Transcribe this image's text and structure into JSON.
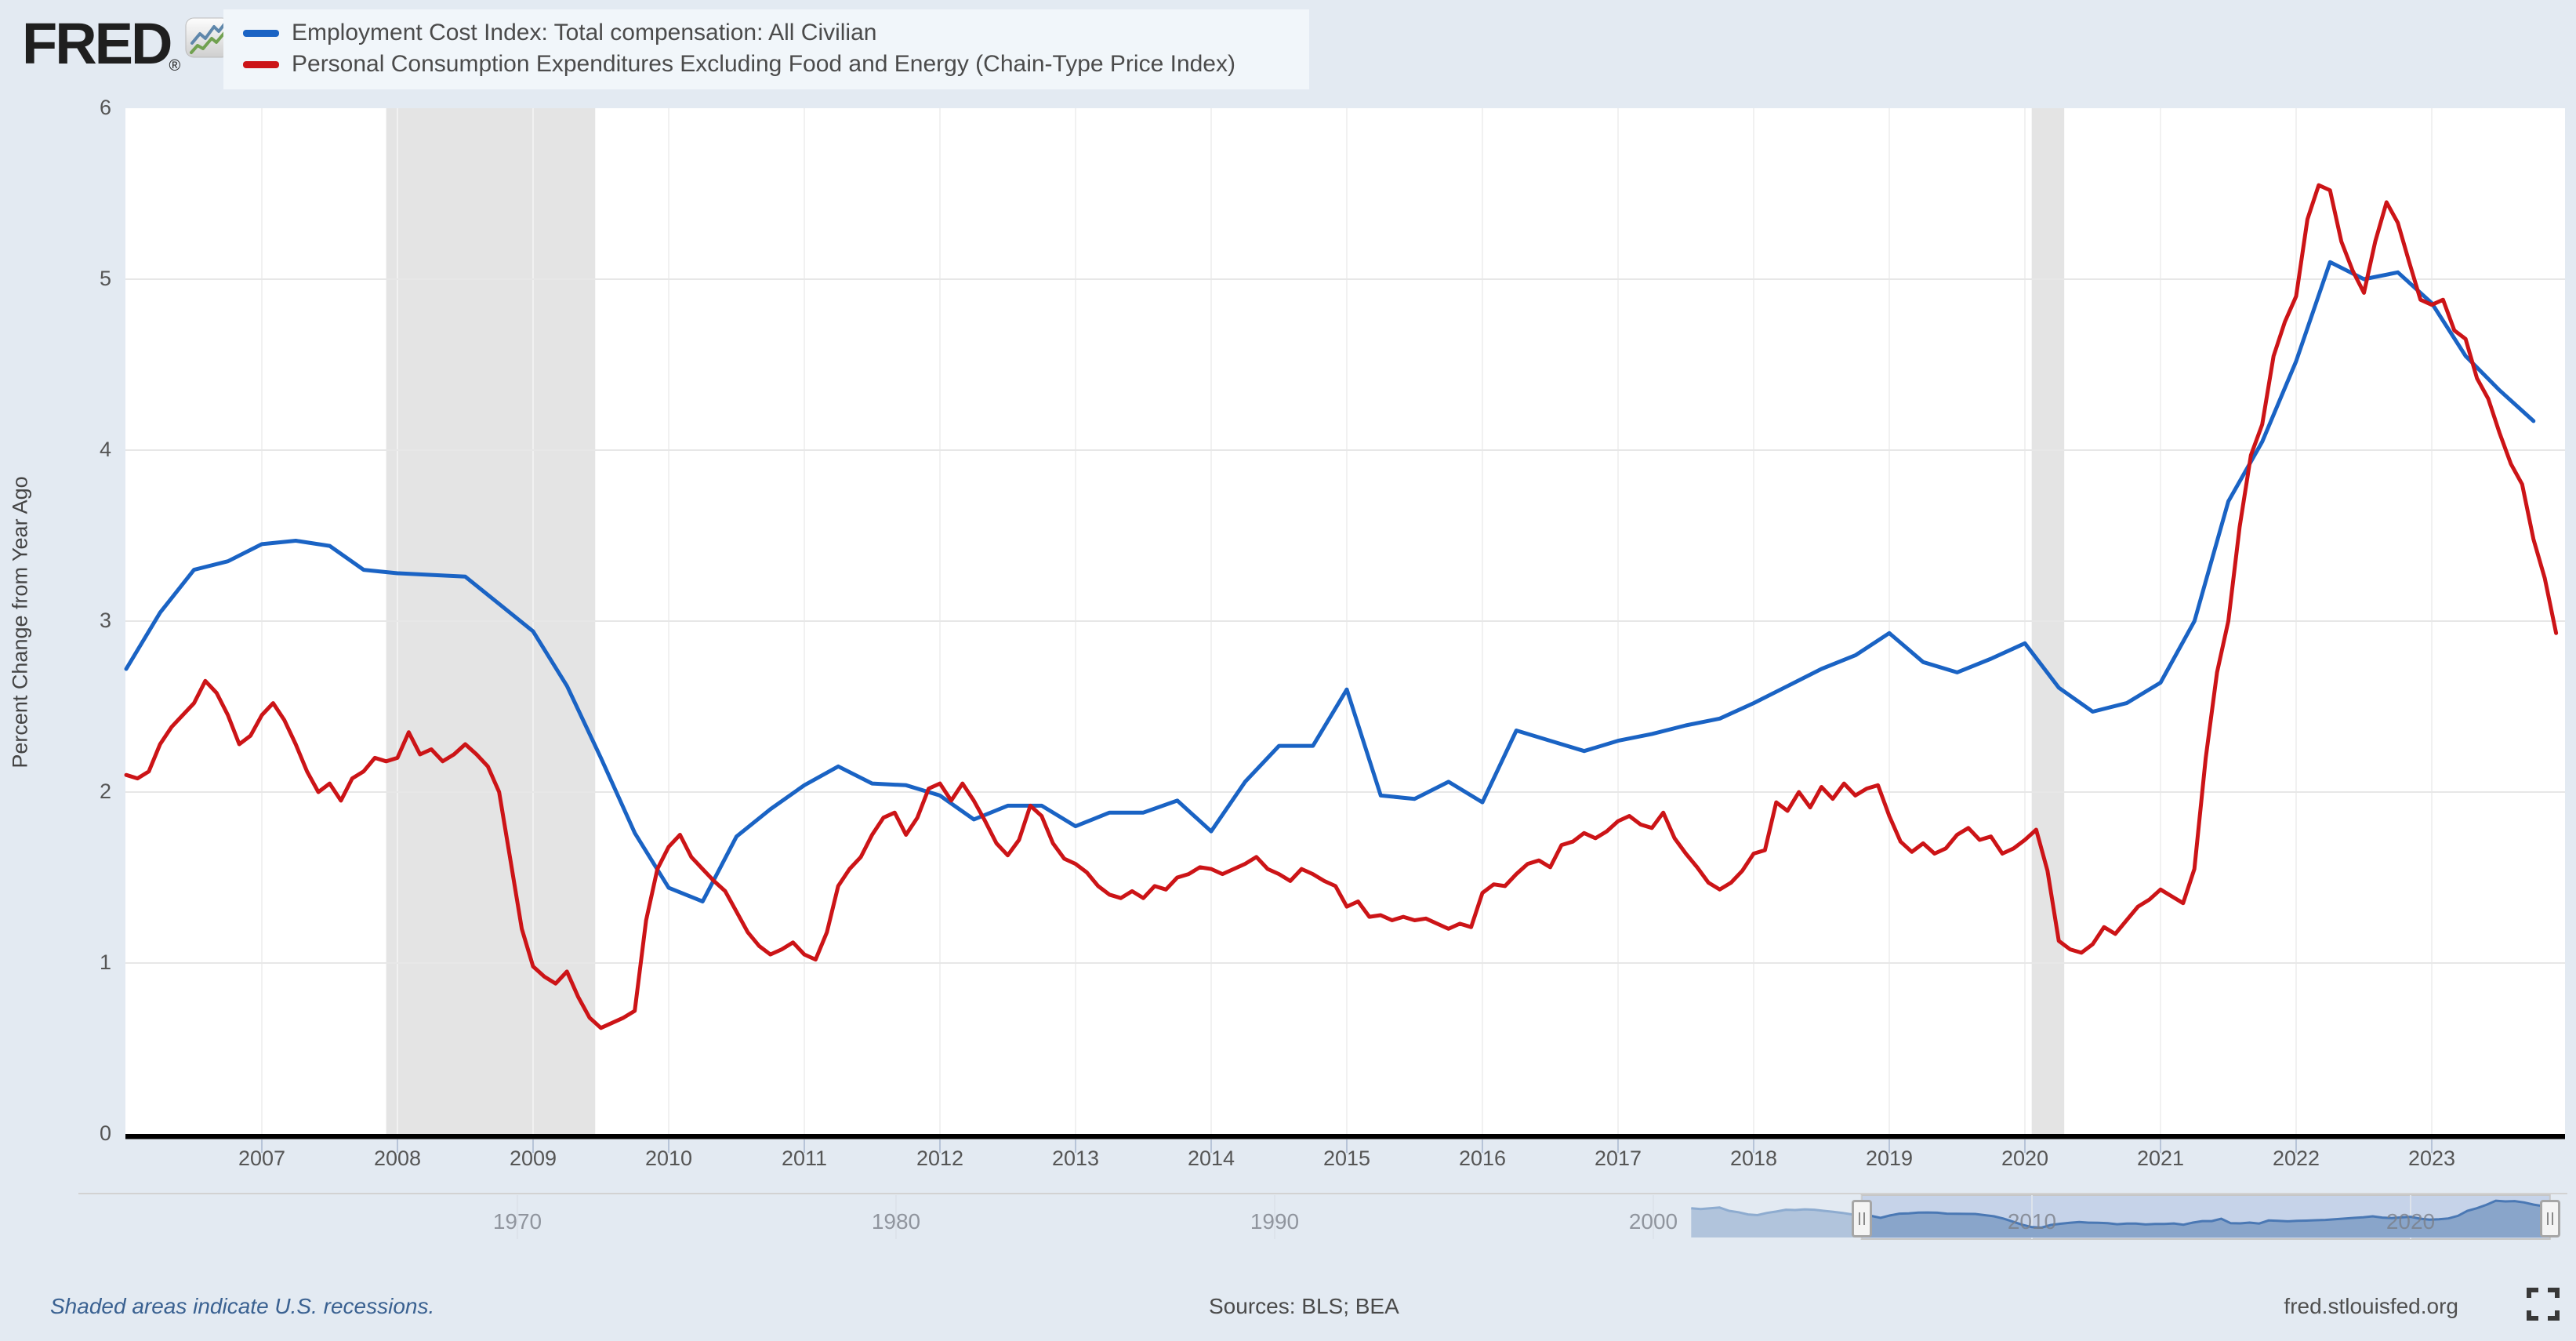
{
  "brand": {
    "logo_text": "FRED",
    "registered_mark": "®",
    "icon": "fred-zigzag-chart-icon"
  },
  "legend": {
    "series": [
      {
        "label": "Employment Cost Index: Total compensation: All Civilian",
        "color": "#1a63c4"
      },
      {
        "label": "Personal Consumption Expenditures Excluding Food and Energy (Chain-Type Price Index)",
        "color": "#cc1417"
      }
    ]
  },
  "footer": {
    "note": "Shaded areas indicate U.S. recessions.",
    "sources": "Sources: BLS; BEA",
    "site": "fred.stlouisfed.org",
    "expand_icon": "fullscreen-icon"
  },
  "colors": {
    "page_bg": "#e3eaf2",
    "plot_bg": "#ffffff",
    "gridline": "#e7e7e7",
    "year_gridline": "#f1f1f1",
    "recession_band": "#e4e4e4",
    "axis_line": "#000000",
    "tick_mark": "#b7c4d8",
    "minimap_fill": "#89a5ca",
    "minimap_stroke": "#4a78b4",
    "minimap_selection_bg": "#c6d3e9",
    "minimap_selection_border": "#c6c6c6"
  },
  "chart_data": {
    "type": "line",
    "title": "",
    "xlabel": "",
    "ylabel": "Percent Change from Year Ago",
    "ylim": [
      0,
      6
    ],
    "y_ticks": [
      "0",
      "1",
      "2",
      "3",
      "4",
      "5",
      "6"
    ],
    "x_ticks": [
      "2007",
      "2008",
      "2009",
      "2010",
      "2011",
      "2012",
      "2013",
      "2014",
      "2015",
      "2016",
      "2017",
      "2018",
      "2019",
      "2020",
      "2021",
      "2022",
      "2023"
    ],
    "grid": true,
    "legend_position": "top-left",
    "recessions": [
      {
        "start": 2007.917,
        "end": 2009.458
      },
      {
        "start": 2020.05,
        "end": 2020.29
      }
    ],
    "series": [
      {
        "name": "Employment Cost Index: Total compensation: All Civilian",
        "color": "#1a63c4",
        "frequency": "quarterly",
        "start": 2006.0,
        "step": 0.25,
        "values": [
          2.72,
          3.05,
          3.3,
          3.35,
          3.45,
          3.47,
          3.44,
          3.3,
          3.28,
          3.27,
          3.26,
          3.1,
          2.94,
          2.62,
          2.2,
          1.76,
          1.44,
          1.36,
          1.74,
          1.9,
          2.04,
          2.15,
          2.05,
          2.04,
          1.98,
          1.84,
          1.92,
          1.92,
          1.8,
          1.88,
          1.88,
          1.95,
          1.77,
          2.06,
          2.27,
          2.27,
          2.6,
          1.98,
          1.96,
          2.06,
          1.94,
          2.36,
          2.3,
          2.24,
          2.3,
          2.34,
          2.39,
          2.43,
          2.52,
          2.62,
          2.72,
          2.8,
          2.93,
          2.76,
          2.7,
          2.78,
          2.87,
          2.61,
          2.47,
          2.52,
          2.64,
          3.0,
          3.7,
          4.05,
          4.52,
          5.1,
          5.0,
          5.04,
          4.86,
          4.55,
          4.35,
          4.17
        ]
      },
      {
        "name": "Personal Consumption Expenditures Excluding Food and Energy (Chain-Type Price Index)",
        "color": "#cc1417",
        "frequency": "monthly",
        "start": 2006.0,
        "step": 0.0833333,
        "values": [
          2.1,
          2.08,
          2.12,
          2.28,
          2.38,
          2.45,
          2.52,
          2.65,
          2.58,
          2.45,
          2.28,
          2.33,
          2.45,
          2.52,
          2.42,
          2.28,
          2.12,
          2.0,
          2.05,
          1.95,
          2.08,
          2.12,
          2.2,
          2.18,
          2.2,
          2.35,
          2.22,
          2.25,
          2.18,
          2.22,
          2.28,
          2.22,
          2.15,
          2.0,
          1.6,
          1.2,
          0.98,
          0.92,
          0.88,
          0.95,
          0.8,
          0.68,
          0.62,
          0.65,
          0.68,
          0.72,
          1.25,
          1.55,
          1.68,
          1.75,
          1.62,
          1.55,
          1.48,
          1.42,
          1.3,
          1.18,
          1.1,
          1.05,
          1.08,
          1.12,
          1.05,
          1.02,
          1.18,
          1.45,
          1.55,
          1.62,
          1.75,
          1.85,
          1.88,
          1.75,
          1.85,
          2.02,
          2.05,
          1.95,
          2.05,
          1.95,
          1.83,
          1.7,
          1.63,
          1.72,
          1.92,
          1.86,
          1.7,
          1.61,
          1.58,
          1.53,
          1.45,
          1.4,
          1.38,
          1.42,
          1.38,
          1.45,
          1.43,
          1.5,
          1.52,
          1.56,
          1.55,
          1.52,
          1.55,
          1.58,
          1.62,
          1.55,
          1.52,
          1.48,
          1.55,
          1.52,
          1.48,
          1.45,
          1.33,
          1.36,
          1.27,
          1.28,
          1.25,
          1.27,
          1.25,
          1.26,
          1.23,
          1.2,
          1.23,
          1.21,
          1.41,
          1.46,
          1.45,
          1.52,
          1.58,
          1.6,
          1.56,
          1.69,
          1.71,
          1.76,
          1.73,
          1.77,
          1.83,
          1.86,
          1.81,
          1.79,
          1.88,
          1.73,
          1.64,
          1.56,
          1.47,
          1.43,
          1.47,
          1.54,
          1.64,
          1.66,
          1.94,
          1.89,
          2.0,
          1.91,
          2.03,
          1.96,
          2.05,
          1.98,
          2.02,
          2.04,
          1.86,
          1.71,
          1.65,
          1.7,
          1.64,
          1.67,
          1.75,
          1.79,
          1.72,
          1.74,
          1.64,
          1.67,
          1.72,
          1.78,
          1.54,
          1.13,
          1.08,
          1.06,
          1.11,
          1.21,
          1.17,
          1.25,
          1.33,
          1.37,
          1.43,
          1.39,
          1.35,
          1.55,
          2.2,
          2.7,
          3.0,
          3.55,
          3.97,
          4.15,
          4.55,
          4.75,
          4.9,
          5.35,
          5.55,
          5.52,
          5.22,
          5.05,
          4.92,
          5.22,
          5.45,
          5.33,
          5.1,
          4.88,
          4.85,
          4.88,
          4.7,
          4.65,
          4.42,
          4.3,
          4.1,
          3.92,
          3.8,
          3.48,
          3.25,
          2.93
        ]
      }
    ],
    "minimap": {
      "decade_labels": [
        "1970",
        "1980",
        "1990",
        "2000",
        "2010",
        "2020"
      ],
      "series_name": "Employment Cost Index: Total compensation: All Civilian",
      "start": 2001.0,
      "step": 0.25,
      "values": [
        4.05,
        3.95,
        4.05,
        4.15,
        3.7,
        3.5,
        3.2,
        3.1,
        3.4,
        3.6,
        3.85,
        3.8,
        3.9,
        3.85,
        3.7,
        3.55,
        3.4,
        3.2,
        3.1,
        3.0,
        2.72,
        3.05,
        3.3,
        3.35,
        3.45,
        3.47,
        3.44,
        3.3,
        3.28,
        3.27,
        3.26,
        3.1,
        2.94,
        2.62,
        2.2,
        1.76,
        1.44,
        1.36,
        1.74,
        1.9,
        2.04,
        2.15,
        2.05,
        2.04,
        1.98,
        1.84,
        1.92,
        1.92,
        1.8,
        1.88,
        1.88,
        1.95,
        1.77,
        2.06,
        2.27,
        2.27,
        2.6,
        1.98,
        1.96,
        2.06,
        1.94,
        2.36,
        2.3,
        2.24,
        2.3,
        2.34,
        2.39,
        2.43,
        2.52,
        2.62,
        2.72,
        2.8,
        2.93,
        2.76,
        2.7,
        2.78,
        2.87,
        2.61,
        2.47,
        2.52,
        2.64,
        3.0,
        3.7,
        4.05,
        4.52,
        5.1,
        5.0,
        5.04,
        4.86,
        4.55,
        4.35,
        4.17
      ],
      "selection_start": 2005.5,
      "selection_end": 2023.68
    }
  }
}
